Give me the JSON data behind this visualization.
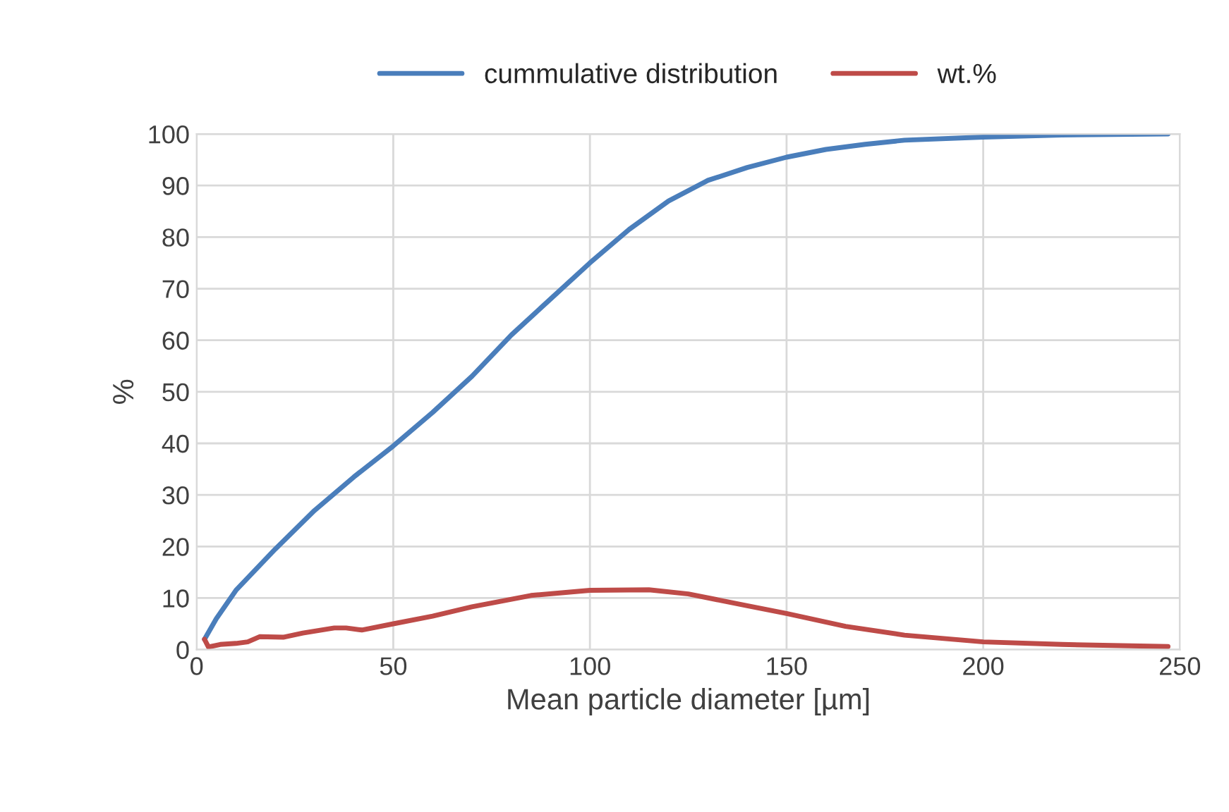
{
  "chart_data": {
    "type": "line",
    "xlabel": "Mean particle diameter [µm]",
    "ylabel": "%",
    "xlim": [
      0,
      250
    ],
    "xticks": [
      0,
      50,
      100,
      150,
      200,
      250
    ],
    "ylim": [
      0,
      100
    ],
    "yticks": [
      0,
      10,
      20,
      30,
      40,
      50,
      60,
      70,
      80,
      90,
      100
    ],
    "grid": true,
    "legend": "top",
    "marker": "none",
    "line_style": "solid",
    "series": [
      {
        "name": "cummulative distribution",
        "color": "#4a7ebb",
        "x": [
          2,
          5,
          10,
          20,
          30,
          40,
          50,
          60,
          70,
          80,
          90,
          100,
          110,
          120,
          130,
          140,
          150,
          160,
          170,
          180,
          200,
          220,
          247
        ],
        "values": [
          2,
          6,
          11.5,
          19.5,
          27,
          33.5,
          39.5,
          46,
          53,
          61,
          68,
          75,
          81.5,
          87,
          91,
          93.5,
          95.5,
          97,
          98,
          98.8,
          99.4,
          99.8,
          100
        ]
      },
      {
        "name": "wt.%",
        "color": "#be4b48",
        "x": [
          2,
          3,
          6,
          10,
          13,
          16,
          22,
          27,
          35,
          38,
          42,
          50,
          60,
          70,
          85,
          100,
          115,
          125,
          140,
          150,
          165,
          180,
          200,
          220,
          247
        ],
        "values": [
          2,
          0.5,
          1,
          1.2,
          1.5,
          2.5,
          2.4,
          3.2,
          4.2,
          4.2,
          3.8,
          5,
          6.5,
          8.3,
          10.5,
          11.5,
          11.6,
          10.8,
          8.5,
          7,
          4.5,
          2.8,
          1.5,
          1,
          0.6
        ]
      }
    ]
  }
}
